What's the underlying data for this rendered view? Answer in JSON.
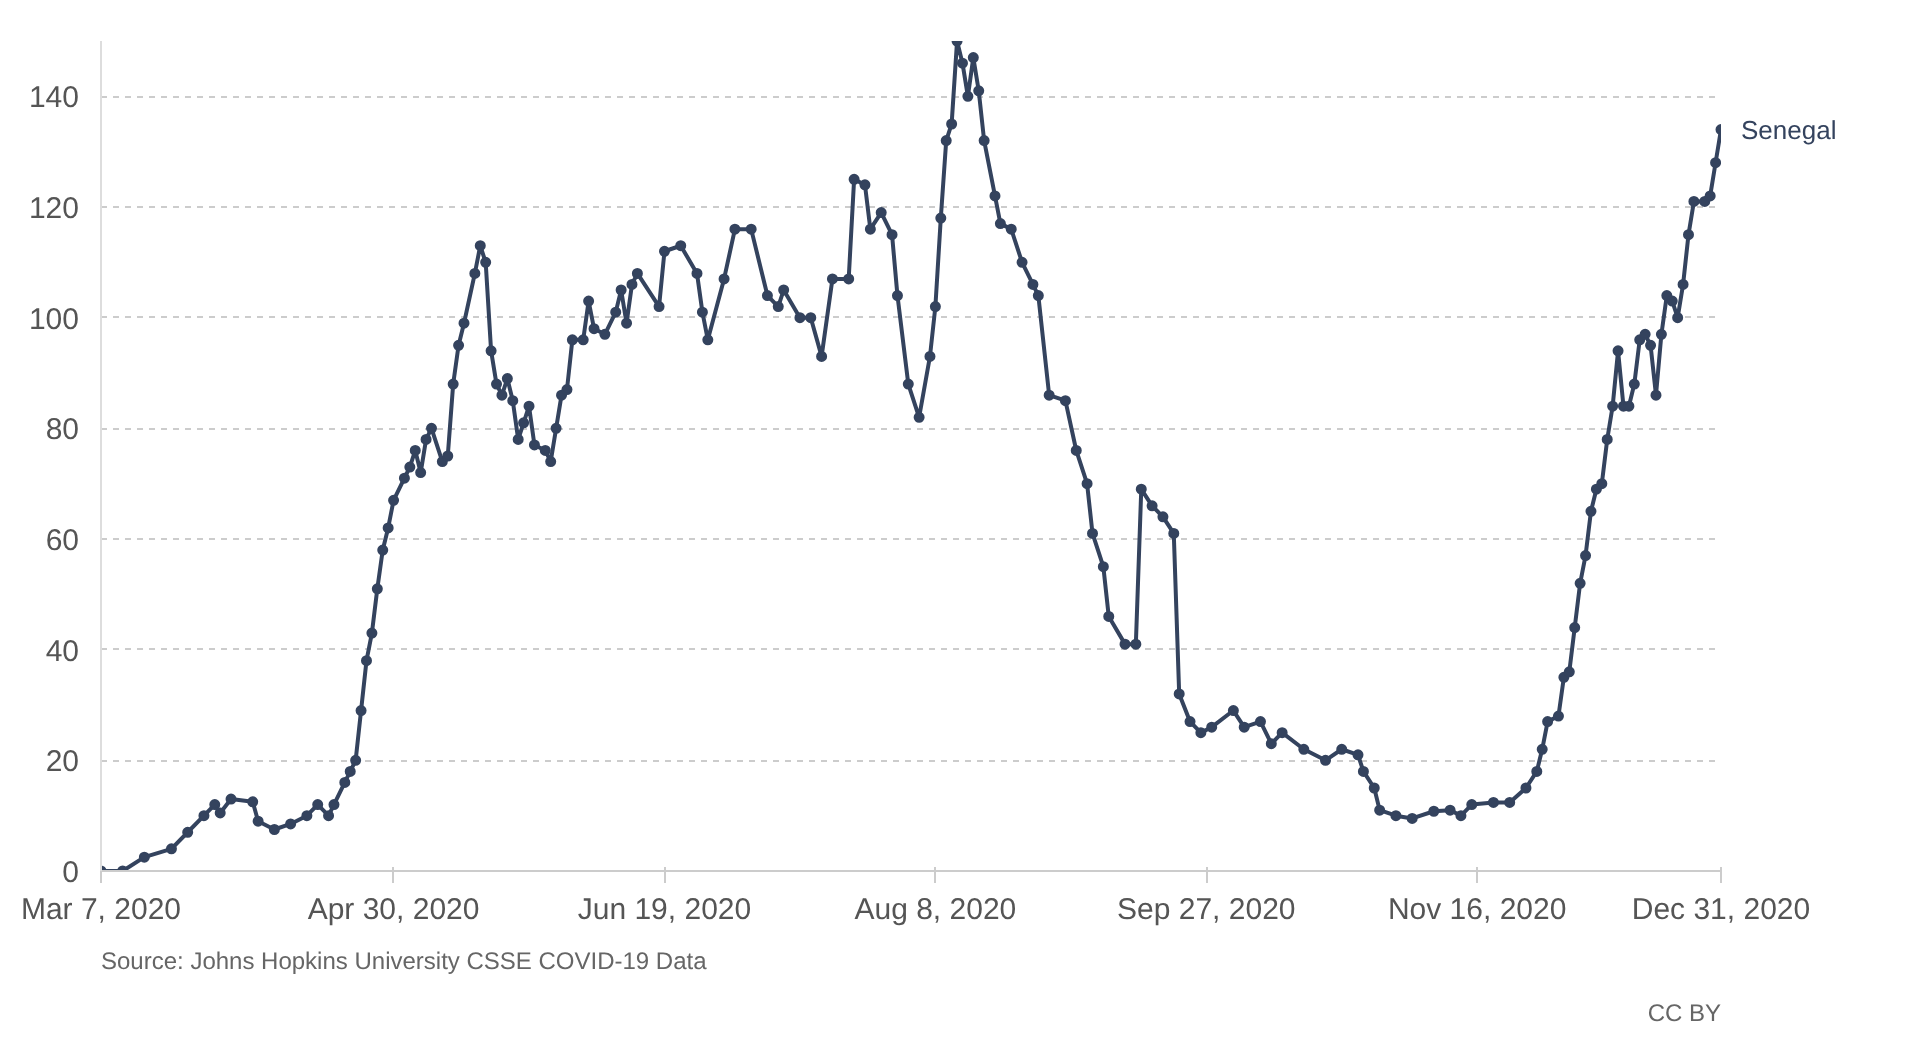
{
  "chart_data": {
    "type": "line",
    "xlim": [
      "2020-03-07",
      "2020-12-31"
    ],
    "ylim": [
      0,
      150
    ],
    "xticks": [
      {
        "value": "2020-03-07",
        "label": "Mar 7, 2020"
      },
      {
        "value": "2020-04-30",
        "label": "Apr 30, 2020"
      },
      {
        "value": "2020-06-19",
        "label": "Jun 19, 2020"
      },
      {
        "value": "2020-08-08",
        "label": "Aug 8, 2020"
      },
      {
        "value": "2020-09-27",
        "label": "Sep 27, 2020"
      },
      {
        "value": "2020-11-16",
        "label": "Nov 16, 2020"
      },
      {
        "value": "2020-12-31",
        "label": "Dec 31, 2020"
      }
    ],
    "yticks": [
      0,
      20,
      40,
      60,
      80,
      100,
      120,
      140
    ],
    "grid": "y",
    "marker": "circle",
    "line_style": "solid",
    "annotations": [
      "Source: Johns Hopkins University CSSE COVID-19 Data",
      "CC BY"
    ],
    "series": [
      {
        "name": "Senegal",
        "color": "#34435e",
        "x": [
          "2020-03-07",
          "2020-03-11",
          "2020-03-15",
          "2020-03-20",
          "2020-03-23",
          "2020-03-26",
          "2020-03-28",
          "2020-03-29",
          "2020-03-31",
          "2020-04-04",
          "2020-04-05",
          "2020-04-08",
          "2020-04-11",
          "2020-04-14",
          "2020-04-16",
          "2020-04-18",
          "2020-04-19",
          "2020-04-21",
          "2020-04-22",
          "2020-04-23",
          "2020-04-24",
          "2020-04-25",
          "2020-04-26",
          "2020-04-27",
          "2020-04-28",
          "2020-04-29",
          "2020-04-30",
          "2020-05-02",
          "2020-05-03",
          "2020-05-04",
          "2020-05-05",
          "2020-05-06",
          "2020-05-07",
          "2020-05-09",
          "2020-05-10",
          "2020-05-11",
          "2020-05-12",
          "2020-05-13",
          "2020-05-15",
          "2020-05-16",
          "2020-05-17",
          "2020-05-18",
          "2020-05-19",
          "2020-05-20",
          "2020-05-21",
          "2020-05-22",
          "2020-05-23",
          "2020-05-24",
          "2020-05-25",
          "2020-05-26",
          "2020-05-28",
          "2020-05-29",
          "2020-05-30",
          "2020-05-31",
          "2020-06-01",
          "2020-06-02",
          "2020-06-04",
          "2020-06-05",
          "2020-06-06",
          "2020-06-08",
          "2020-06-10",
          "2020-06-11",
          "2020-06-12",
          "2020-06-13",
          "2020-06-14",
          "2020-06-18",
          "2020-06-19",
          "2020-06-22",
          "2020-06-25",
          "2020-06-26",
          "2020-06-27",
          "2020-06-30",
          "2020-07-02",
          "2020-07-05",
          "2020-07-08",
          "2020-07-10",
          "2020-07-11",
          "2020-07-14",
          "2020-07-16",
          "2020-07-18",
          "2020-07-20",
          "2020-07-23",
          "2020-07-24",
          "2020-07-26",
          "2020-07-27",
          "2020-07-29",
          "2020-07-31",
          "2020-08-01",
          "2020-08-03",
          "2020-08-05",
          "2020-08-07",
          "2020-08-08",
          "2020-08-09",
          "2020-08-10",
          "2020-08-11",
          "2020-08-12",
          "2020-08-13",
          "2020-08-14",
          "2020-08-15",
          "2020-08-16",
          "2020-08-17",
          "2020-08-19",
          "2020-08-20",
          "2020-08-22",
          "2020-08-24",
          "2020-08-26",
          "2020-08-27",
          "2020-08-29",
          "2020-09-01",
          "2020-09-03",
          "2020-09-05",
          "2020-09-06",
          "2020-09-08",
          "2020-09-09",
          "2020-09-12",
          "2020-09-14",
          "2020-09-15",
          "2020-09-17",
          "2020-09-19",
          "2020-09-21",
          "2020-09-22",
          "2020-09-24",
          "2020-09-26",
          "2020-09-28",
          "2020-10-02",
          "2020-10-04",
          "2020-10-07",
          "2020-10-09",
          "2020-10-11",
          "2020-10-15",
          "2020-10-19",
          "2020-10-22",
          "2020-10-25",
          "2020-10-26",
          "2020-10-28",
          "2020-10-29",
          "2020-11-01",
          "2020-11-04",
          "2020-11-08",
          "2020-11-11",
          "2020-11-13",
          "2020-11-15",
          "2020-11-19",
          "2020-11-22",
          "2020-11-25",
          "2020-11-27",
          "2020-11-28",
          "2020-11-29",
          "2020-12-01",
          "2020-12-02",
          "2020-12-03",
          "2020-12-04",
          "2020-12-05",
          "2020-12-06",
          "2020-12-07",
          "2020-12-08",
          "2020-12-09",
          "2020-12-10",
          "2020-12-11",
          "2020-12-12",
          "2020-12-13",
          "2020-12-14",
          "2020-12-15",
          "2020-12-16",
          "2020-12-17",
          "2020-12-18",
          "2020-12-19",
          "2020-12-20",
          "2020-12-21",
          "2020-12-22",
          "2020-12-23",
          "2020-12-24",
          "2020-12-25",
          "2020-12-26",
          "2020-12-28",
          "2020-12-29",
          "2020-12-30",
          "2020-12-31"
        ],
        "values": [
          0,
          0,
          2.5,
          4,
          7,
          10,
          12,
          10.5,
          13,
          12.5,
          9,
          7.5,
          8.5,
          10,
          12,
          10,
          12,
          16,
          18,
          20,
          29,
          38,
          43,
          51,
          58,
          62,
          67,
          71,
          73,
          76,
          72,
          78,
          80,
          74,
          75,
          88,
          95,
          99,
          108,
          113,
          110,
          94,
          88,
          86,
          89,
          85,
          78,
          81,
          84,
          77,
          76,
          74,
          80,
          86,
          87,
          96,
          96,
          103,
          98,
          97,
          101,
          105,
          99,
          106,
          108,
          102,
          112,
          113,
          108,
          101,
          96,
          107,
          116,
          116,
          104,
          102,
          105,
          100,
          100,
          93,
          107,
          107,
          125,
          124,
          116,
          119,
          115,
          104,
          88,
          82,
          93,
          102,
          118,
          132,
          135,
          150,
          146,
          140,
          147,
          141,
          132,
          122,
          117,
          116,
          110,
          106,
          104,
          86,
          85,
          76,
          70,
          61,
          55,
          46,
          41,
          41,
          69,
          66,
          64,
          61,
          32,
          27,
          25,
          26,
          29,
          26,
          27,
          23,
          25,
          22,
          20,
          22,
          21,
          18,
          15,
          11,
          10,
          9.5,
          10.8,
          11,
          10,
          12,
          12.4,
          12.4,
          15,
          18,
          22,
          27,
          28,
          35,
          36,
          44,
          52,
          57,
          65,
          69,
          70,
          78,
          84,
          94,
          84,
          84,
          88,
          96,
          97,
          95,
          86,
          97,
          104,
          103,
          100,
          106,
          115,
          121,
          121,
          122,
          128,
          134
        ]
      }
    ]
  }
}
